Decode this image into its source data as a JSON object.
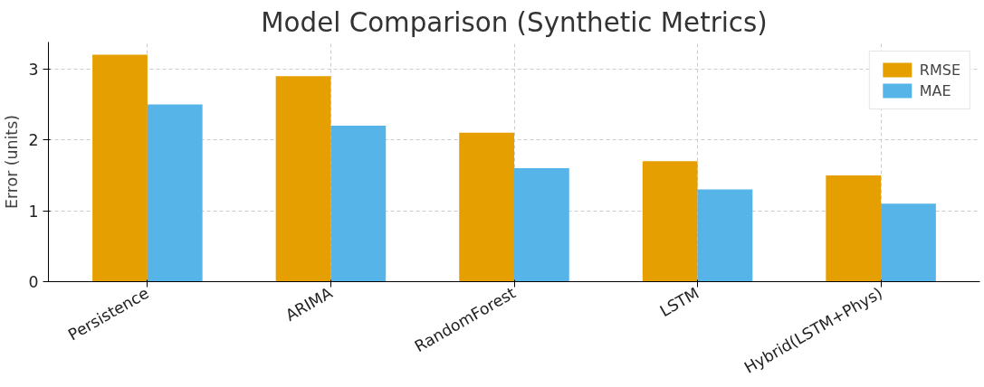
{
  "chart_data": {
    "type": "bar",
    "title": "Model Comparison (Synthetic Metrics)",
    "ylabel": "Error (units)",
    "categories": [
      "Persistence",
      "ARIMA",
      "RandomForest",
      "LSTM",
      "Hybrid(LSTM+Phys)"
    ],
    "series": [
      {
        "name": "RMSE",
        "color": "#e69f00",
        "values": [
          3.2,
          2.9,
          2.1,
          1.7,
          1.5
        ]
      },
      {
        "name": "MAE",
        "color": "#56b4e9",
        "values": [
          2.5,
          2.2,
          1.6,
          1.3,
          1.1
        ]
      }
    ],
    "ylim": [
      0,
      3.38
    ],
    "yticks": [
      0,
      1,
      2,
      3
    ],
    "grid": true,
    "legend": "top right"
  }
}
